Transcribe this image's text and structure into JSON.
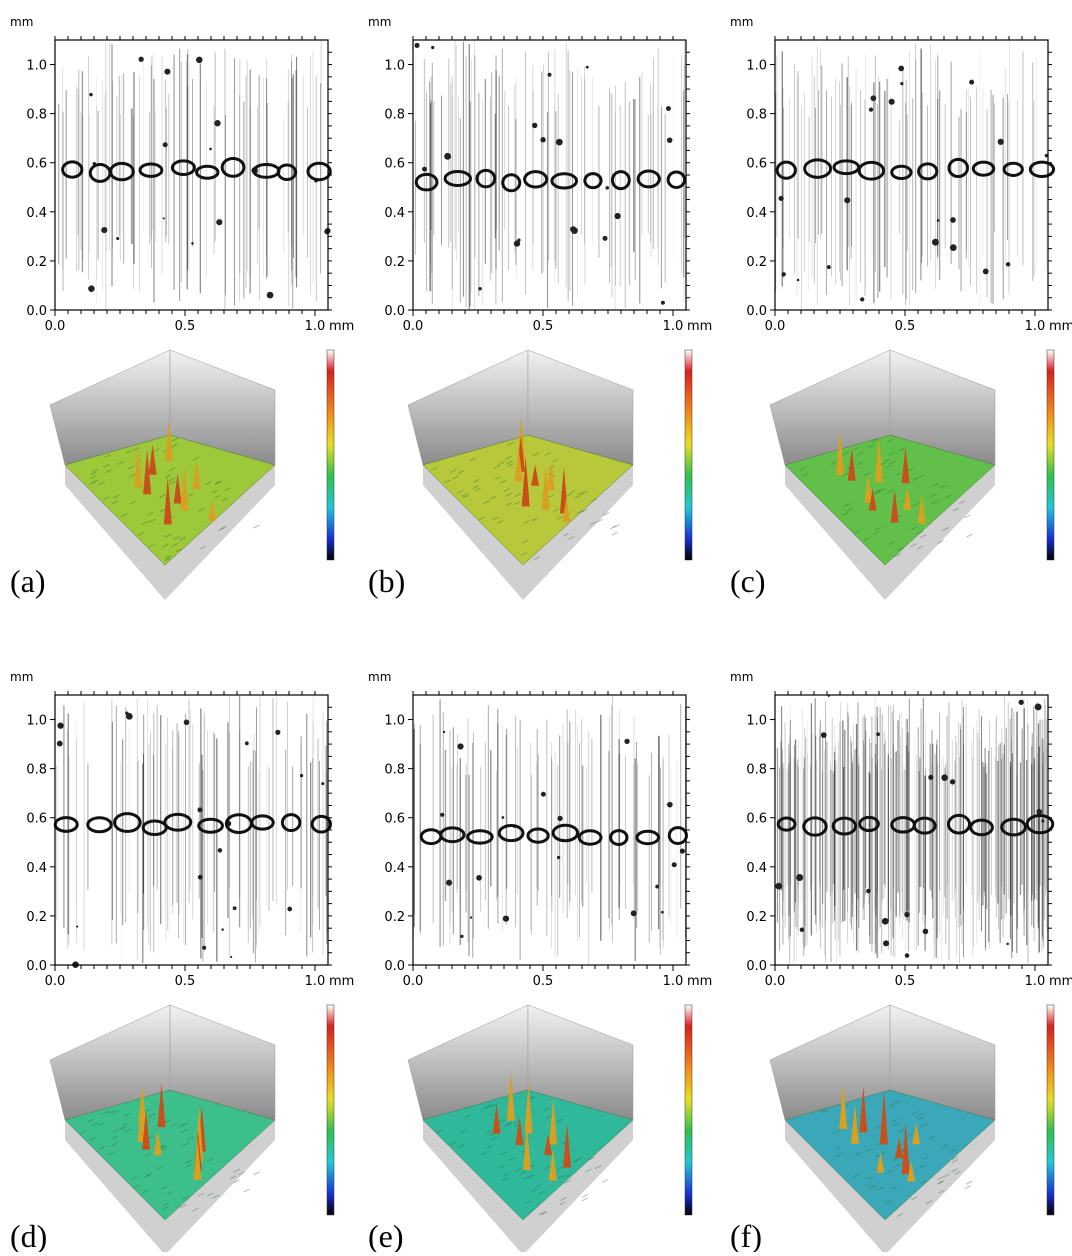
{
  "panels": [
    {
      "label": "(a)",
      "y_unit": "mm",
      "x_unit": "mm",
      "yticks": [
        {
          "value": 0,
          "label": "0.0"
        },
        {
          "value": 0.2,
          "label": "0.2"
        },
        {
          "value": 0.4,
          "label": "0.4"
        },
        {
          "value": 0.6,
          "label": "0.6"
        },
        {
          "value": 0.8,
          "label": "0.8"
        },
        {
          "value": 1.0,
          "label": "1.0"
        }
      ],
      "xticks": [
        {
          "value": 0,
          "label": "0.0"
        },
        {
          "value": 0.5,
          "label": "0.5"
        },
        {
          "value": 1.0,
          "label": "1.0"
        }
      ]
    },
    {
      "label": "(b)",
      "y_unit": "mm",
      "x_unit": "mm",
      "yticks": [
        {
          "value": 0,
          "label": "0.0"
        },
        {
          "value": 0.2,
          "label": "0.2"
        },
        {
          "value": 0.4,
          "label": "0.4"
        },
        {
          "value": 0.6,
          "label": "0.6"
        },
        {
          "value": 0.8,
          "label": "0.8"
        },
        {
          "value": 1.0,
          "label": "1.0"
        }
      ],
      "xticks": [
        {
          "value": 0,
          "label": "0.0"
        },
        {
          "value": 0.5,
          "label": "0.5"
        },
        {
          "value": 1.0,
          "label": "1.0"
        }
      ]
    },
    {
      "label": "(c)",
      "y_unit": "mm",
      "x_unit": "mm",
      "yticks": [
        {
          "value": 0,
          "label": "0.0"
        },
        {
          "value": 0.2,
          "label": "0.2"
        },
        {
          "value": 0.4,
          "label": "0.4"
        },
        {
          "value": 0.6,
          "label": "0.6"
        },
        {
          "value": 0.8,
          "label": "0.8"
        },
        {
          "value": 1.0,
          "label": "1.0"
        }
      ],
      "xticks": [
        {
          "value": 0,
          "label": "0.0"
        },
        {
          "value": 0.5,
          "label": "0.5"
        },
        {
          "value": 1.0,
          "label": "1.0"
        }
      ]
    },
    {
      "label": "(d)",
      "y_unit": "mm",
      "x_unit": "mm",
      "yticks": [
        {
          "value": 0,
          "label": "0.0"
        },
        {
          "value": 0.2,
          "label": "0.2"
        },
        {
          "value": 0.4,
          "label": "0.4"
        },
        {
          "value": 0.6,
          "label": "0.6"
        },
        {
          "value": 0.8,
          "label": "0.8"
        },
        {
          "value": 1.0,
          "label": "1.0"
        }
      ],
      "xticks": [
        {
          "value": 0,
          "label": "0.0"
        },
        {
          "value": 0.5,
          "label": "0.5"
        },
        {
          "value": 1.0,
          "label": "1.0"
        }
      ]
    },
    {
      "label": "(e)",
      "y_unit": "mm",
      "x_unit": "mm",
      "yticks": [
        {
          "value": 0,
          "label": "0.0"
        },
        {
          "value": 0.2,
          "label": "0.2"
        },
        {
          "value": 0.4,
          "label": "0.4"
        },
        {
          "value": 0.6,
          "label": "0.6"
        },
        {
          "value": 0.8,
          "label": "0.8"
        },
        {
          "value": 1.0,
          "label": "1.0"
        }
      ],
      "xticks": [
        {
          "value": 0,
          "label": "0.0"
        },
        {
          "value": 0.5,
          "label": "0.5"
        },
        {
          "value": 1.0,
          "label": "1.0"
        }
      ]
    },
    {
      "label": "(f)",
      "y_unit": "mm",
      "x_unit": "mm",
      "yticks": [
        {
          "value": 0,
          "label": "0.0"
        },
        {
          "value": 0.2,
          "label": "0.2"
        },
        {
          "value": 0.4,
          "label": "0.4"
        },
        {
          "value": 0.6,
          "label": "0.6"
        },
        {
          "value": 0.8,
          "label": "0.8"
        },
        {
          "value": 1.0,
          "label": "1.0"
        }
      ],
      "xticks": [
        {
          "value": 0,
          "label": "0.0"
        },
        {
          "value": 0.5,
          "label": "0.5"
        },
        {
          "value": 1.0,
          "label": "1.0"
        }
      ]
    }
  ]
}
